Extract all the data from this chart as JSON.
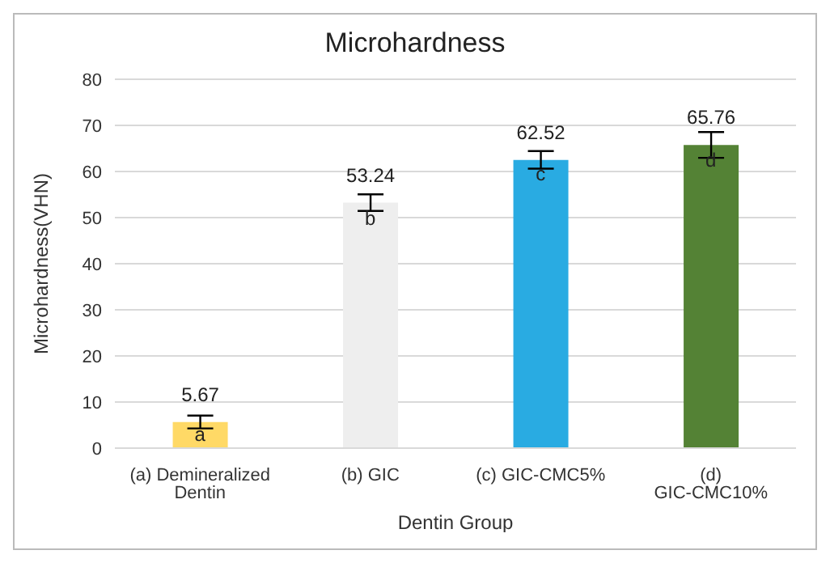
{
  "chart_data": {
    "type": "bar",
    "title": "Microhardness",
    "xlabel": "Dentin Group",
    "ylabel": "Microhardness(VHN)",
    "categories": [
      "(a) Demineralized Dentin",
      "(b) GIC",
      "(c) GIC-CMC5%",
      "(d) GIC-CMC10%"
    ],
    "values": [
      5.67,
      53.24,
      62.52,
      65.76
    ],
    "colors": [
      "#ffd966",
      "#eeeeee",
      "#29abe2",
      "#548235"
    ],
    "errors": [
      1.4,
      1.8,
      1.9,
      2.8
    ],
    "data_labels": true,
    "annotations": [
      {
        "text": "a",
        "x": "(a) Demineralized Dentin",
        "y": 3
      },
      {
        "text": "b",
        "x": "(b) GIC",
        "y": 50
      },
      {
        "text": "c",
        "x": "(c) GIC-CMC5%",
        "y": 59.5
      },
      {
        "text": "d",
        "x": "(d) GIC-CMC10%",
        "y": 62.5
      }
    ],
    "ylim": [
      0,
      80
    ],
    "yticks": [
      0,
      10,
      20,
      30,
      40,
      50,
      60,
      70,
      80
    ],
    "grid": "y",
    "legend": false
  }
}
